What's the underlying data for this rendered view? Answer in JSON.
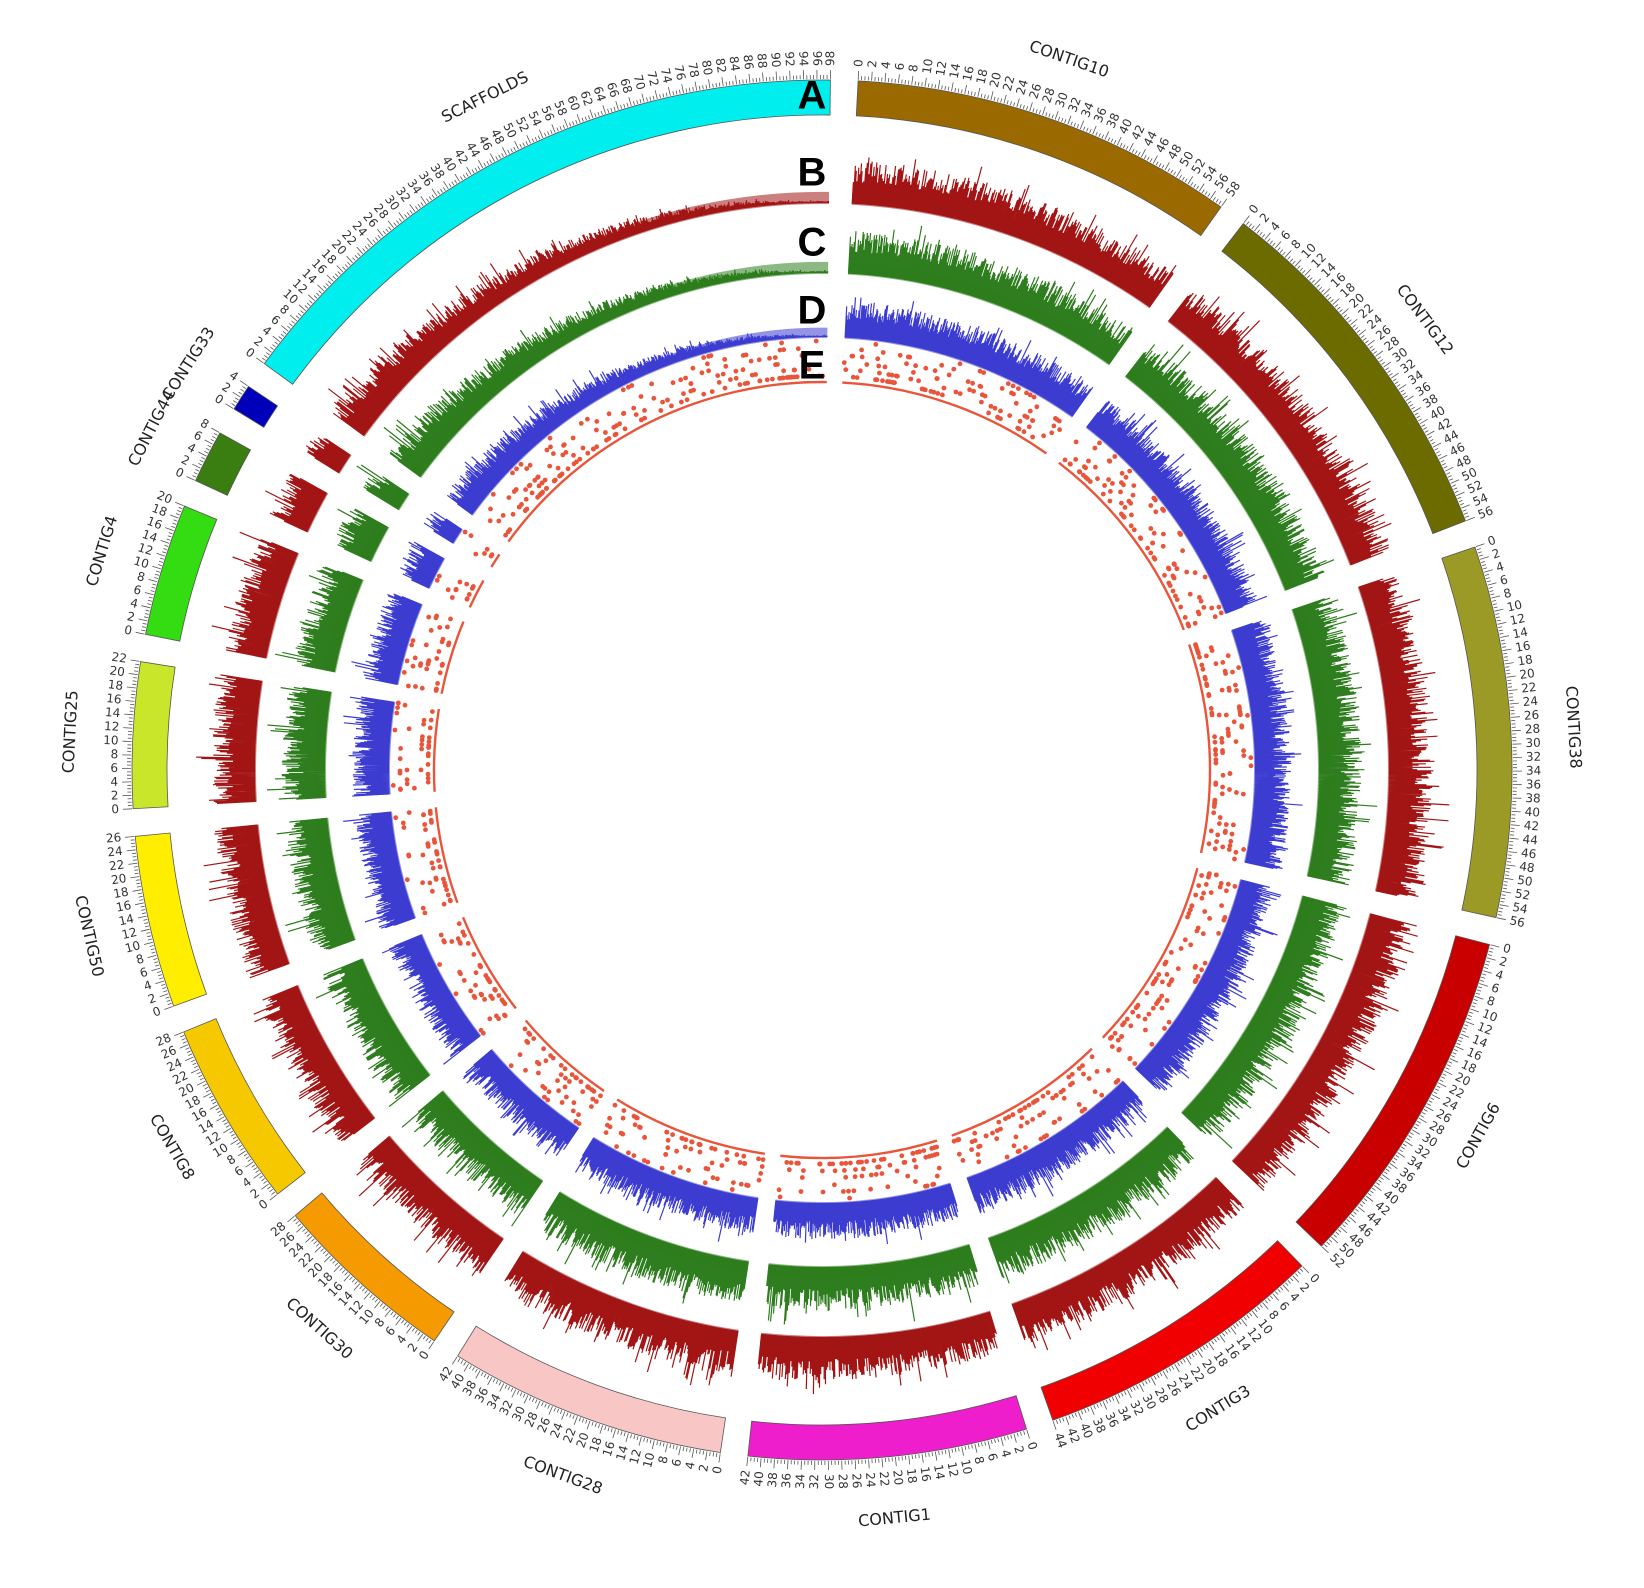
{
  "chart_data": {
    "type": "circos",
    "tick_step": 2,
    "segments": [
      {
        "name": "CONTIG10",
        "length": 58,
        "color": "#9a6a00"
      },
      {
        "name": "CONTIG12",
        "length": 56,
        "color": "#6b6b00"
      },
      {
        "name": "CONTIG38",
        "length": 56,
        "color": "#9c9a26"
      },
      {
        "name": "CONTIG6",
        "length": 52,
        "color": "#c80000"
      },
      {
        "name": "CONTIG3",
        "length": 44,
        "color": "#f00000"
      },
      {
        "name": "CONTIG1",
        "length": 42,
        "color": "#ee1ecc"
      },
      {
        "name": "CONTIG28",
        "length": 42,
        "color": "#f9c6c6"
      },
      {
        "name": "CONTIG30",
        "length": 28,
        "color": "#f59a00"
      },
      {
        "name": "CONTIG8",
        "length": 28,
        "color": "#f5c800"
      },
      {
        "name": "CONTIG50",
        "length": 26,
        "color": "#ffee00"
      },
      {
        "name": "CONTIG25",
        "length": 22,
        "color": "#c9e62a"
      },
      {
        "name": "CONTIG4",
        "length": 20,
        "color": "#33dd11"
      },
      {
        "name": "CONTIG44",
        "length": 8,
        "color": "#3a7d10"
      },
      {
        "name": "CONTIG33",
        "length": 4,
        "color": "#0000bb"
      },
      {
        "name": "SCAFFOLDS",
        "length": 98,
        "color": "#00eeee"
      }
    ],
    "tracks": [
      {
        "label": "A",
        "kind": "ideogram"
      },
      {
        "label": "B",
        "kind": "histogram",
        "color": "#a31515"
      },
      {
        "label": "C",
        "kind": "histogram",
        "color": "#2e7d1e"
      },
      {
        "label": "D",
        "kind": "histogram",
        "color": "#3c3cd0"
      },
      {
        "label": "E",
        "kind": "scatter",
        "color": "#e8553a"
      }
    ]
  }
}
